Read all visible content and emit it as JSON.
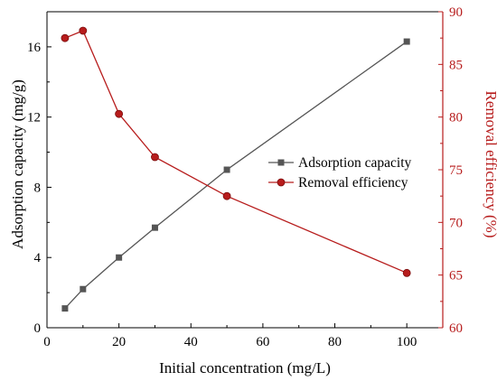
{
  "chart_data": {
    "type": "line",
    "xlabel": "Initial concentration (mg/L)",
    "ylabel_left": "Adsorption capacity (mg/g)",
    "ylabel_right": "Removal efficiency (%)",
    "xlim": [
      0,
      110
    ],
    "ylim_left": [
      0,
      18
    ],
    "ylim_right": [
      60,
      90
    ],
    "xticks": [
      0,
      20,
      40,
      60,
      80,
      100
    ],
    "yticks_left": [
      0,
      4,
      8,
      12,
      16
    ],
    "yticks_right": [
      60,
      65,
      70,
      75,
      80,
      85,
      90
    ],
    "grid": false,
    "legend_position": "center-right",
    "series": [
      {
        "name": "Adsorption capacity",
        "axis": "left",
        "marker": "square",
        "color": "#555555",
        "x": [
          5,
          10,
          20,
          30,
          50,
          100
        ],
        "y": [
          1.1,
          2.2,
          4.0,
          5.7,
          9.0,
          16.3
        ]
      },
      {
        "name": "Removal efficiency",
        "axis": "right",
        "marker": "circle",
        "color": "#b71c1c",
        "x": [
          5,
          10,
          20,
          30,
          50,
          100
        ],
        "y": [
          87.5,
          88.2,
          80.3,
          76.2,
          72.5,
          65.2
        ]
      }
    ],
    "colors": {
      "left_axis": "#000000",
      "right_axis": "#b71c1c"
    }
  }
}
